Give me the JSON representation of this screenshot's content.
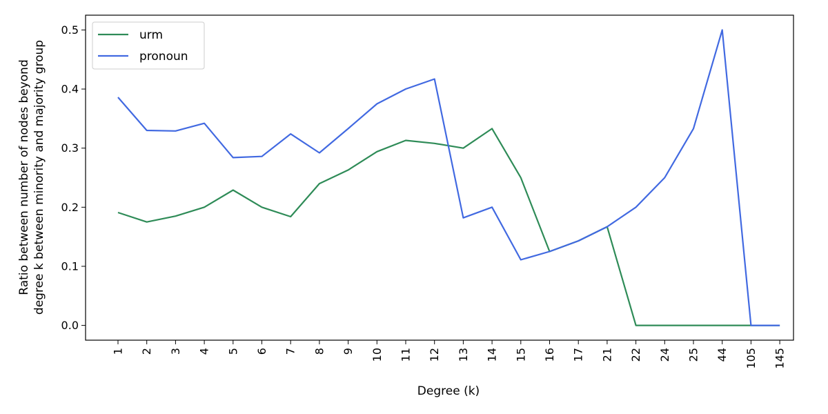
{
  "chart_data": {
    "type": "line",
    "xlabel": "Degree (k)",
    "ylabel_lines": [
      "Ratio between number of nodes beyond",
      "degree k between minority and majority group"
    ],
    "categories": [
      "1",
      "2",
      "3",
      "4",
      "5",
      "6",
      "7",
      "8",
      "9",
      "10",
      "11",
      "12",
      "13",
      "14",
      "15",
      "16",
      "17",
      "21",
      "22",
      "24",
      "25",
      "44",
      "105",
      "145"
    ],
    "yticks": [
      "0.0",
      "0.1",
      "0.2",
      "0.3",
      "0.4",
      "0.5"
    ],
    "ylim": [
      -0.025,
      0.525
    ],
    "legend_position": "upper-left",
    "grid": false,
    "series": [
      {
        "name": "urm",
        "color": "#2e8b57",
        "values": [
          0.191,
          0.175,
          0.185,
          0.2,
          0.229,
          0.2,
          0.184,
          0.24,
          0.263,
          0.294,
          0.313,
          0.308,
          0.3,
          0.333,
          0.25,
          0.125,
          0.143,
          0.167,
          0.0,
          0.0,
          0.0,
          0.0,
          0.0,
          0.0
        ]
      },
      {
        "name": "pronoun",
        "color": "#4169e1",
        "values": [
          0.386,
          0.33,
          0.329,
          0.342,
          0.284,
          0.286,
          0.324,
          0.292,
          0.333,
          0.375,
          0.4,
          0.417,
          0.182,
          0.2,
          0.111,
          0.125,
          0.143,
          0.167,
          0.2,
          0.25,
          0.333,
          0.5,
          0.0,
          0.0
        ]
      }
    ]
  }
}
